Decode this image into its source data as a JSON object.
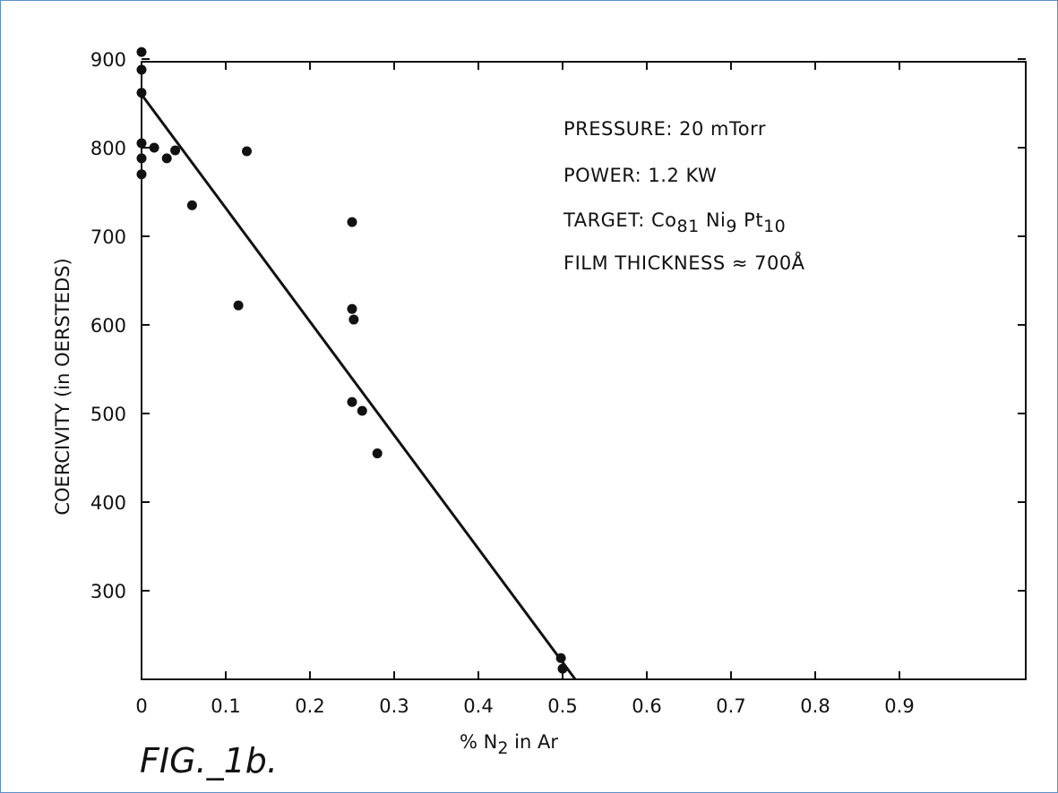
{
  "chart_data": {
    "type": "scatter",
    "xlabel": {
      "prefix": "% N",
      "sub": "2",
      "suffix": " in  Ar"
    },
    "ylabel": "COERCIVITY (in OERSTEDS)",
    "xlim": [
      0,
      1.0
    ],
    "ylim": [
      200,
      900
    ],
    "x_ticks": [
      0,
      0.1,
      0.2,
      0.3,
      0.4,
      0.5,
      0.6,
      0.7,
      0.8,
      0.9
    ],
    "x_tick_labels": [
      "0",
      "0.1",
      "0.2",
      "0.3",
      "0.4",
      "0.5",
      "0.6",
      "0.7",
      "0.8",
      "0.9"
    ],
    "y_ticks": [
      300,
      400,
      500,
      600,
      700,
      800,
      900
    ],
    "y_tick_labels": [
      "300",
      "400",
      "500",
      "600",
      "700",
      "800",
      "900"
    ],
    "grid": false,
    "series": [
      {
        "points": [
          {
            "x": 0.0,
            "y": 908
          },
          {
            "x": 0.0,
            "y": 888
          },
          {
            "x": 0.0,
            "y": 862
          },
          {
            "x": 0.0,
            "y": 805
          },
          {
            "x": 0.0,
            "y": 788
          },
          {
            "x": 0.0,
            "y": 770
          },
          {
            "x": 0.015,
            "y": 800
          },
          {
            "x": 0.03,
            "y": 788
          },
          {
            "x": 0.04,
            "y": 797
          },
          {
            "x": 0.06,
            "y": 735
          },
          {
            "x": 0.115,
            "y": 622
          },
          {
            "x": 0.125,
            "y": 796
          },
          {
            "x": 0.25,
            "y": 716
          },
          {
            "x": 0.25,
            "y": 618
          },
          {
            "x": 0.252,
            "y": 606
          },
          {
            "x": 0.25,
            "y": 513
          },
          {
            "x": 0.262,
            "y": 503
          },
          {
            "x": 0.28,
            "y": 455
          },
          {
            "x": 0.498,
            "y": 224
          },
          {
            "x": 0.5,
            "y": 212
          }
        ]
      }
    ],
    "fit_line": {
      "x": [
        0.0,
        0.515
      ],
      "y": [
        860,
        200
      ]
    },
    "annotations": [
      {
        "parts": [
          {
            "t": "PRESSURE: 20 mTorr"
          }
        ]
      },
      {
        "parts": [
          {
            "t": "POWER: 1.2 KW"
          }
        ]
      },
      {
        "parts": [
          {
            "t": "TARGET: Co"
          },
          {
            "t": "81",
            "sub": true
          },
          {
            "t": " Ni"
          },
          {
            "t": "9",
            "sub": true
          },
          {
            "t": " Pt"
          },
          {
            "t": "10",
            "sub": true
          }
        ]
      },
      {
        "parts": [
          {
            "t": "FILM THICKNESS ≈ 700Å"
          }
        ]
      }
    ],
    "figure_label": "FIG._1b."
  }
}
